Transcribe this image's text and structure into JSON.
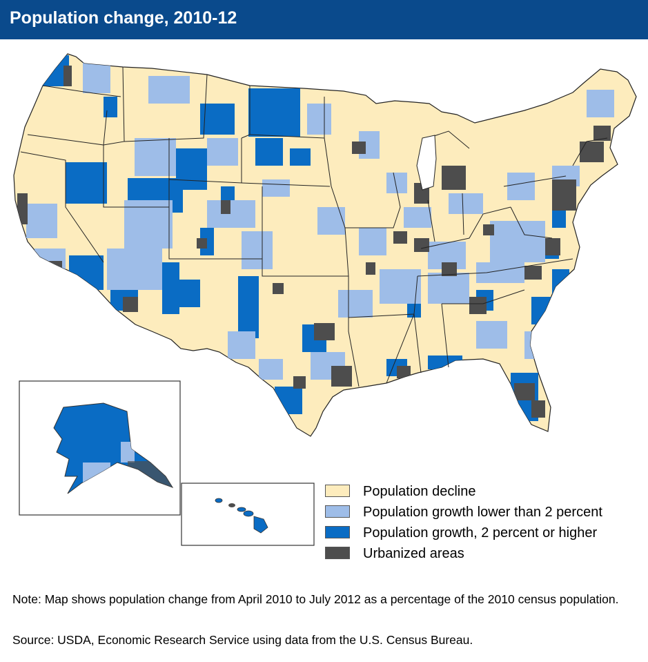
{
  "title": "Population change, 2010-12",
  "colors": {
    "header_bg": "#0a4a8c",
    "population_decline": "#fdecbd",
    "growth_low": "#9ebde8",
    "growth_high": "#0a6cc4",
    "urbanized": "#4d4d4d",
    "border": "#222222"
  },
  "legend": [
    {
      "label": "Population decline",
      "color": "#fdecbd"
    },
    {
      "label": "Population growth lower than 2 percent",
      "color": "#9ebde8"
    },
    {
      "label": "Population growth, 2 percent or higher",
      "color": "#0a6cc4"
    },
    {
      "label": "Urbanized areas",
      "color": "#4d4d4d"
    }
  ],
  "note": "Note: Map shows population change from April 2010 to July 2012 as a percentage of the 2010 census population.",
  "source": "Source: USDA, Economic Research Service using data from the U.S. Census Bureau."
}
